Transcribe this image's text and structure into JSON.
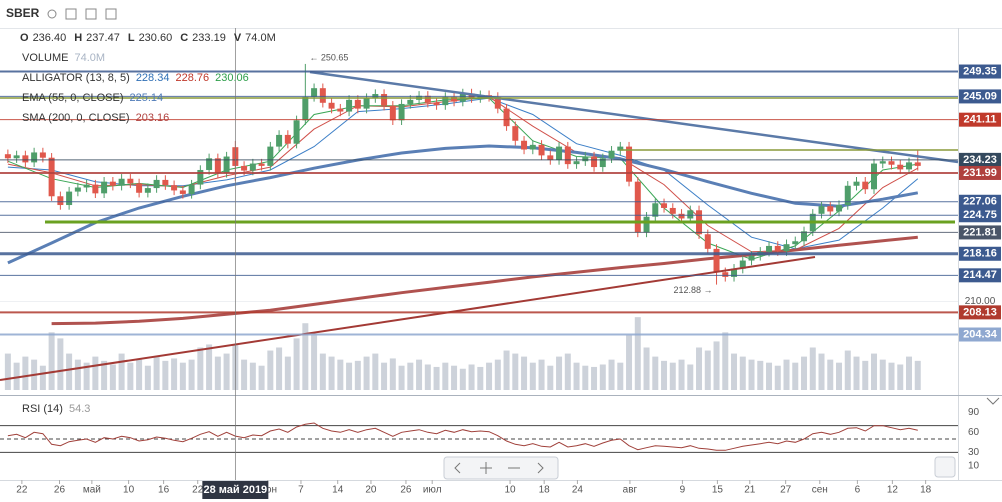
{
  "chart_data": {
    "type": "candlestick",
    "symbol": "SBER",
    "header": [
      {
        "key": "O",
        "value": "236.40"
      },
      {
        "key": "H",
        "value": "237.47"
      },
      {
        "key": "L",
        "value": "230.60"
      },
      {
        "key": "C",
        "value": "233.19"
      },
      {
        "key": "V",
        "value": "74.0M"
      }
    ],
    "legend_rows": [
      {
        "name": "VOLUME",
        "values": [
          "74.0M"
        ],
        "colors": [
          "#a9b4c4"
        ]
      },
      {
        "name": "ALLIGATOR (13, 8, 5)",
        "values": [
          228.34,
          228.76,
          230.06
        ],
        "colors": [
          "#2f6fb5",
          "#c0392b",
          "#2e9e4a"
        ]
      },
      {
        "name": "EMA (55, 0, CLOSE)",
        "values": [
          225.14
        ],
        "colors": [
          "#4f7bb8"
        ]
      },
      {
        "name": "SMA (200, 0, CLOSE)",
        "values": [
          203.16
        ],
        "colors": [
          "#b0413e"
        ]
      }
    ],
    "up_color": "#4f9e6a",
    "down_color": "#e0584c",
    "volume_color": "#cdd2da",
    "open": [
      235.2,
      234.5,
      235.0,
      233.8,
      235.5,
      234.6,
      228.0,
      226.5,
      228.8,
      229.5,
      230.0,
      228.5,
      230.5,
      229.8,
      231.0,
      230.2,
      228.6,
      229.4,
      230.8,
      229.9,
      229.0,
      228.4,
      230.0,
      232.5,
      234.5,
      232.0,
      236.4,
      233.19,
      232.4,
      233.6,
      233.2,
      236.5,
      238.5,
      237.0,
      241.0,
      245.0,
      246.5,
      244.0,
      243.0,
      242.5,
      244.5,
      243.0,
      244.8,
      245.5,
      243.5,
      241.0,
      243.8,
      244.5,
      245.2,
      244.0,
      243.6,
      245.0,
      244.2,
      245.6,
      244.8,
      245.3,
      245.0,
      243.0,
      240.0,
      237.5,
      236.0,
      236.8,
      235.0,
      234.2,
      236.5,
      233.5,
      234.0,
      234.8,
      233.0,
      234.5,
      235.8,
      236.5,
      230.5,
      221.8,
      224.5,
      226.8,
      226.0,
      225.0,
      224.2,
      225.6,
      221.5,
      219.0,
      215.0,
      214.2,
      215.6,
      217.0,
      217.8,
      218.5,
      219.5,
      218.6,
      219.8,
      220.3,
      222.0,
      225.0,
      226.3,
      225.4,
      226.5,
      229.8,
      230.5,
      229.2,
      233.6,
      234.0,
      233.4,
      232.6,
      233.8
    ],
    "high": [
      236.0,
      235.8,
      235.8,
      236.3,
      236.3,
      235.4,
      228.8,
      229.6,
      230.3,
      230.8,
      230.8,
      231.3,
      231.3,
      231.8,
      231.8,
      231.0,
      230.2,
      231.6,
      231.6,
      230.7,
      229.8,
      230.8,
      233.3,
      235.3,
      235.3,
      235.6,
      237.47,
      234.0,
      234.4,
      234.4,
      237.3,
      239.3,
      239.3,
      241.8,
      250.65,
      247.3,
      247.3,
      244.8,
      243.8,
      245.3,
      245.3,
      245.6,
      246.3,
      246.3,
      244.3,
      244.6,
      245.3,
      246.0,
      246.0,
      244.8,
      245.8,
      245.8,
      246.4,
      246.4,
      246.1,
      246.1,
      245.8,
      243.8,
      240.8,
      238.3,
      237.6,
      237.6,
      235.8,
      237.3,
      237.3,
      234.8,
      235.6,
      235.6,
      235.3,
      236.6,
      237.3,
      237.3,
      231.3,
      225.3,
      227.6,
      227.6,
      226.8,
      225.8,
      226.4,
      226.4,
      222.3,
      219.8,
      215.8,
      216.4,
      217.8,
      218.6,
      219.3,
      220.3,
      220.3,
      220.6,
      221.1,
      222.8,
      225.8,
      227.1,
      227.1,
      227.3,
      230.6,
      231.3,
      231.3,
      234.4,
      234.8,
      234.8,
      234.2,
      234.6,
      236.0
    ],
    "low": [
      233.7,
      233.7,
      233.0,
      233.0,
      233.8,
      227.2,
      225.7,
      225.7,
      228.0,
      228.7,
      227.7,
      227.7,
      229.0,
      229.0,
      229.4,
      227.8,
      227.8,
      228.6,
      229.1,
      228.2,
      227.6,
      227.6,
      229.2,
      231.7,
      231.2,
      231.2,
      230.6,
      231.6,
      231.6,
      232.4,
      232.4,
      235.7,
      236.2,
      236.2,
      240.2,
      244.2,
      243.2,
      242.2,
      241.7,
      241.7,
      242.2,
      242.2,
      244.0,
      242.7,
      240.2,
      240.2,
      243.0,
      243.7,
      243.2,
      242.8,
      242.8,
      243.4,
      243.4,
      244.0,
      244.0,
      244.2,
      242.2,
      239.2,
      236.7,
      235.2,
      235.2,
      234.2,
      233.4,
      233.4,
      232.7,
      232.7,
      233.2,
      232.2,
      232.2,
      233.7,
      235.0,
      229.7,
      221.0,
      221.0,
      223.7,
      225.2,
      224.2,
      223.4,
      223.4,
      220.7,
      218.2,
      212.88,
      213.4,
      213.4,
      214.8,
      216.2,
      217.0,
      217.7,
      217.8,
      217.8,
      219.0,
      219.5,
      221.2,
      224.2,
      224.6,
      224.6,
      225.7,
      229.0,
      228.4,
      228.4,
      232.8,
      232.6,
      231.8,
      231.8,
      232.4
    ],
    "close": [
      234.5,
      235.0,
      233.8,
      235.5,
      234.6,
      228.0,
      226.5,
      228.8,
      229.5,
      230.0,
      228.5,
      230.5,
      229.8,
      231.0,
      230.2,
      228.6,
      229.4,
      230.8,
      229.9,
      229.0,
      228.4,
      230.0,
      232.5,
      234.5,
      232.0,
      234.8,
      233.19,
      232.4,
      233.6,
      233.2,
      236.5,
      238.5,
      237.0,
      241.0,
      245.0,
      246.5,
      244.0,
      243.0,
      242.5,
      244.5,
      243.0,
      244.8,
      245.5,
      243.5,
      241.0,
      243.8,
      244.5,
      245.2,
      244.0,
      243.6,
      245.0,
      244.2,
      245.6,
      244.8,
      245.3,
      245.0,
      243.0,
      240.0,
      237.5,
      236.0,
      236.8,
      235.0,
      234.2,
      236.5,
      233.5,
      234.0,
      234.8,
      233.0,
      234.5,
      235.8,
      236.5,
      230.5,
      221.8,
      224.5,
      226.8,
      226.0,
      225.0,
      224.2,
      225.6,
      221.5,
      219.0,
      215.0,
      214.2,
      215.6,
      217.0,
      217.8,
      218.5,
      219.5,
      218.6,
      219.8,
      220.3,
      222.0,
      225.0,
      226.3,
      225.4,
      226.5,
      229.8,
      230.5,
      229.2,
      233.6,
      234.0,
      233.4,
      232.6,
      233.8,
      233.2
    ],
    "volume": [
      60,
      45,
      55,
      50,
      40,
      95,
      85,
      60,
      50,
      45,
      55,
      48,
      42,
      60,
      45,
      50,
      40,
      55,
      48,
      52,
      45,
      50,
      70,
      75,
      55,
      60,
      74,
      50,
      45,
      40,
      65,
      70,
      55,
      85,
      110,
      90,
      60,
      55,
      50,
      45,
      48,
      55,
      60,
      45,
      52,
      40,
      45,
      50,
      42,
      38,
      45,
      40,
      35,
      42,
      38,
      45,
      50,
      65,
      60,
      55,
      45,
      50,
      40,
      55,
      60,
      45,
      40,
      38,
      42,
      50,
      45,
      90,
      120,
      70,
      55,
      48,
      45,
      50,
      42,
      70,
      65,
      80,
      95,
      60,
      55,
      50,
      48,
      45,
      40,
      50,
      45,
      55,
      70,
      60,
      50,
      45,
      65,
      55,
      48,
      60,
      50,
      45,
      42,
      55,
      48
    ],
    "vlim": [
      0,
      140
    ],
    "overlays": [
      {
        "color": "#3c7fc7",
        "width": 1,
        "x": [
          0,
          5,
          10,
          15,
          20,
          25,
          30,
          35,
          40,
          45,
          50,
          55,
          60,
          65,
          70,
          75,
          80,
          85,
          90,
          95,
          100,
          104
        ],
        "values": [
          233,
          232.5,
          230.5,
          229.8,
          229.8,
          230.8,
          232.5,
          236.5,
          242.5,
          243,
          243.8,
          244.8,
          242,
          237,
          235,
          232.5,
          226.5,
          221,
          219,
          220.5,
          226,
          231
        ]
      },
      {
        "color": "#d0504a",
        "width": 1,
        "x": [
          0,
          5,
          10,
          15,
          20,
          25,
          30,
          35,
          40,
          45,
          50,
          55,
          60,
          65,
          70,
          75,
          80,
          85,
          90,
          95,
          100,
          104
        ],
        "values": [
          233.5,
          232,
          229.8,
          230,
          229.6,
          231.5,
          233,
          239.5,
          243.5,
          243.3,
          244.2,
          245,
          240,
          235.5,
          234.6,
          230,
          223,
          218.5,
          218.8,
          222.5,
          229.5,
          232.8
        ]
      },
      {
        "color": "#3aa655",
        "width": 1,
        "x": [
          0,
          5,
          10,
          15,
          20,
          25,
          30,
          35,
          40,
          45,
          50,
          55,
          60,
          65,
          70,
          75,
          80,
          85,
          90,
          95,
          100,
          104
        ],
        "values": [
          234,
          231,
          229.5,
          230.2,
          229.5,
          232.5,
          234,
          242,
          243.5,
          243.5,
          244.5,
          244.8,
          237.5,
          234.8,
          234.5,
          226,
          220,
          217.2,
          219.5,
          225.5,
          232.5,
          233.5
        ]
      },
      {
        "color": "#5a7fb5",
        "width": 3,
        "x": [
          0,
          5,
          10,
          15,
          20,
          25,
          30,
          35,
          40,
          45,
          50,
          55,
          60,
          65,
          70,
          75,
          80,
          85,
          90,
          95,
          100,
          104
        ],
        "values": [
          216.6,
          220,
          223.5,
          226,
          228,
          229.8,
          231.2,
          232.8,
          234.2,
          235.4,
          236.2,
          236.6,
          236.3,
          235.5,
          234.4,
          232.6,
          230.5,
          228.5,
          226.8,
          226.3,
          227.5,
          228.6
        ]
      },
      {
        "color": "#b0524f",
        "width": 3,
        "x": [
          5,
          10,
          15,
          20,
          25,
          30,
          35,
          40,
          45,
          50,
          55,
          60,
          65,
          70,
          75,
          80,
          85,
          90,
          95,
          100,
          104
        ],
        "values": [
          206.2,
          206.3,
          206.6,
          207.1,
          207.8,
          208.5,
          209.5,
          210.5,
          211.5,
          212.4,
          213.3,
          214.2,
          215.0,
          215.8,
          216.5,
          217.3,
          218.0,
          218.8,
          219.6,
          220.4,
          221.0
        ]
      }
    ],
    "xlim": [
      -0.9,
      108.6
    ],
    "ylim": [
      194.5,
      256.8
    ],
    "yticks": [
      {
        "value": 210,
        "label": "210.00"
      }
    ],
    "xticks": [
      {
        "value": 1.6,
        "label": "22"
      },
      {
        "value": 5.9,
        "label": "26"
      },
      {
        "value": 9.6,
        "label": "май"
      },
      {
        "value": 13.8,
        "label": "10"
      },
      {
        "value": 17.8,
        "label": "16"
      },
      {
        "value": 21.7,
        "label": "22"
      },
      {
        "value": 29.7,
        "label": "июн"
      },
      {
        "value": 33.5,
        "label": "7"
      },
      {
        "value": 37.7,
        "label": "14"
      },
      {
        "value": 41.5,
        "label": "20"
      },
      {
        "value": 45.5,
        "label": "26"
      },
      {
        "value": 48.5,
        "label": "июл"
      },
      {
        "value": 57.4,
        "label": "10"
      },
      {
        "value": 61.3,
        "label": "18"
      },
      {
        "value": 65.1,
        "label": "24"
      },
      {
        "value": 71.1,
        "label": "авг"
      },
      {
        "value": 77.1,
        "label": "9"
      },
      {
        "value": 81.1,
        "label": "15"
      },
      {
        "value": 84.8,
        "label": "21"
      },
      {
        "value": 88.9,
        "label": "27"
      },
      {
        "value": 92.8,
        "label": "сен"
      },
      {
        "value": 97.1,
        "label": "6"
      },
      {
        "value": 101.1,
        "label": "12"
      },
      {
        "value": 104.9,
        "label": "18"
      }
    ],
    "levels": [
      {
        "value": 249.35,
        "color": "#3c5a8f",
        "width": 2
      },
      {
        "value": 245.09,
        "color": "#3c5a8f",
        "width": 1
      },
      {
        "value": 241.11,
        "color": "#c0392b",
        "width": 1
      },
      {
        "value": 234.23,
        "color": "#34495e",
        "width": 1
      },
      {
        "value": 231.99,
        "color": "#b0413e",
        "width": 2
      },
      {
        "value": 227.06,
        "color": "#3c5a8f",
        "width": 1
      },
      {
        "value": 224.75,
        "color": "#3c5a8f",
        "width": 1
      },
      {
        "value": 221.81,
        "color": "#4a5568",
        "width": 1
      },
      {
        "value": 218.16,
        "color": "#3c5a8f",
        "width": 3
      },
      {
        "value": 214.47,
        "color": "#3c5a8f",
        "width": 1
      },
      {
        "value": 208.13,
        "color": "#b03a2e",
        "width": 2
      },
      {
        "value": 204.34,
        "color": "#8fa8d0",
        "width": 2
      }
    ],
    "annotations": {
      "high": "← 250.65",
      "low": "212.88 →"
    },
    "crosshair": {
      "index": 26,
      "label": "28 май 2019"
    },
    "rsi": {
      "name": "RSI (14)",
      "value": 54.3,
      "color": "#a0403a",
      "ylim": [
        -11.5,
        113
      ],
      "yticks": [
        90,
        60,
        30,
        10
      ],
      "upper": 70,
      "middle": 50,
      "lower": 30,
      "values": [
        55,
        57,
        52,
        60,
        58,
        42,
        40,
        46,
        48,
        50,
        45,
        52,
        50,
        54,
        52,
        47,
        49,
        53,
        51,
        48,
        46,
        51,
        57,
        61,
        54,
        60,
        54.3,
        52,
        56,
        55,
        62,
        65,
        60,
        68,
        72,
        74,
        66,
        62,
        60,
        64,
        60,
        64,
        66,
        60,
        54,
        60,
        62,
        64,
        60,
        58,
        63,
        60,
        64,
        61,
        62,
        61,
        55,
        47,
        42,
        40,
        43,
        39,
        38,
        45,
        38,
        40,
        43,
        39,
        44,
        48,
        50,
        40,
        34,
        37,
        40,
        39,
        38,
        37,
        40,
        36,
        35,
        33,
        33,
        36,
        39,
        41,
        43,
        45,
        43,
        47,
        45,
        50,
        58,
        60,
        57,
        60,
        66,
        67,
        62,
        70,
        70,
        67,
        64,
        66,
        63
      ]
    }
  }
}
